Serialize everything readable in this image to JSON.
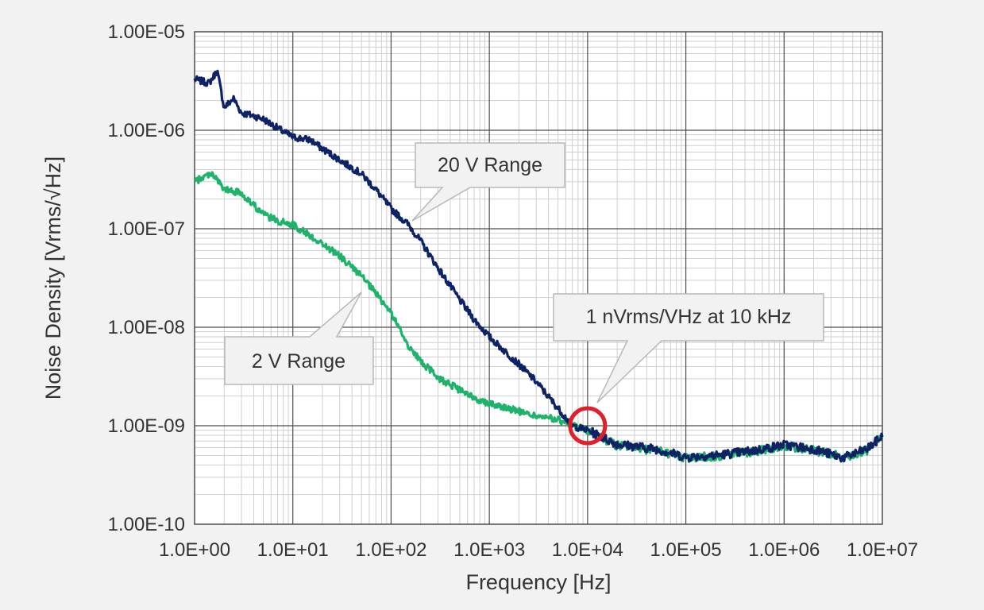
{
  "chart_data": {
    "type": "line",
    "xlabel": "Frequency [Hz]",
    "ylabel": "Noise Density [Vrms/√Hz]",
    "xscale": "log",
    "yscale": "log",
    "xlim": [
      1,
      10000000
    ],
    "ylim": [
      1e-10,
      1e-05
    ],
    "grid": true,
    "x_tick_labels": [
      "1.0E+00",
      "1.0E+01",
      "1.0E+02",
      "1.0E+03",
      "1.0E+04",
      "1.0E+05",
      "1.0E+06",
      "1.0E+07"
    ],
    "y_tick_labels": [
      "1.00E-05",
      "1.00E-06",
      "1.00E-07",
      "1.00E-08",
      "1.00E-09",
      "1.00E-10"
    ],
    "series": [
      {
        "name": "20 V Range",
        "color": "#0d2366",
        "x": [
          1,
          1.4,
          1.7,
          2,
          2.5,
          3,
          4,
          5,
          7,
          10,
          15,
          20,
          30,
          50,
          70,
          100,
          150,
          200,
          300,
          500,
          700,
          1000,
          2000,
          3000,
          5000,
          7000,
          10000,
          20000,
          50000,
          100000,
          200000,
          500000,
          1000000,
          2000000,
          4000000,
          7000000,
          10000000
        ],
        "y": [
          3.3e-06,
          3e-06,
          4e-06,
          1.7e-06,
          2.1e-06,
          1.5e-06,
          1.4e-06,
          1.3e-06,
          1.05e-06,
          8.5e-07,
          8e-07,
          6.5e-07,
          5e-07,
          3.6e-07,
          2.5e-07,
          1.6e-07,
          1.1e-07,
          7.5e-08,
          4e-08,
          1.9e-08,
          1.2e-08,
          8e-09,
          4.2e-09,
          2.8e-09,
          1.5e-09,
          1e-09,
          9e-10,
          6.5e-10,
          5.8e-10,
          4.8e-10,
          5e-10,
          5.6e-10,
          6.4e-10,
          5.8e-10,
          4.7e-10,
          5.8e-10,
          7.8e-10
        ]
      },
      {
        "name": "2 V Range",
        "color": "#1db36a",
        "x": [
          1,
          1.5,
          2,
          3,
          5,
          7,
          10,
          15,
          20,
          30,
          50,
          70,
          100,
          150,
          200,
          300,
          500,
          700,
          1000,
          2000,
          3000,
          5000,
          7000,
          10000,
          20000,
          50000,
          100000,
          200000,
          500000,
          1000000,
          2000000,
          4000000,
          7000000,
          10000000
        ],
        "y": [
          3e-07,
          3.7e-07,
          2.5e-07,
          2.3e-07,
          1.4e-07,
          1.2e-07,
          1.1e-07,
          8.5e-08,
          7e-08,
          5.3e-08,
          3.3e-08,
          2.2e-08,
          1.4e-08,
          6.5e-09,
          4.5e-09,
          3.1e-09,
          2.3e-09,
          1.9e-09,
          1.7e-09,
          1.4e-09,
          1.25e-09,
          1.15e-09,
          1e-09,
          9e-10,
          6.3e-10,
          5.6e-10,
          4.7e-10,
          4.9e-10,
          5.5e-10,
          6.3e-10,
          5.6e-10,
          4.8e-10,
          5.6e-10,
          7.8e-10
        ]
      }
    ],
    "annotations": [
      {
        "text": "20 V Range"
      },
      {
        "text": "2 V Range"
      },
      {
        "text": "1 nVrms/VHz at 10 kHz"
      }
    ],
    "highlight_marker": {
      "x": 10000,
      "y": 1e-09,
      "color": "#e0202a"
    }
  }
}
